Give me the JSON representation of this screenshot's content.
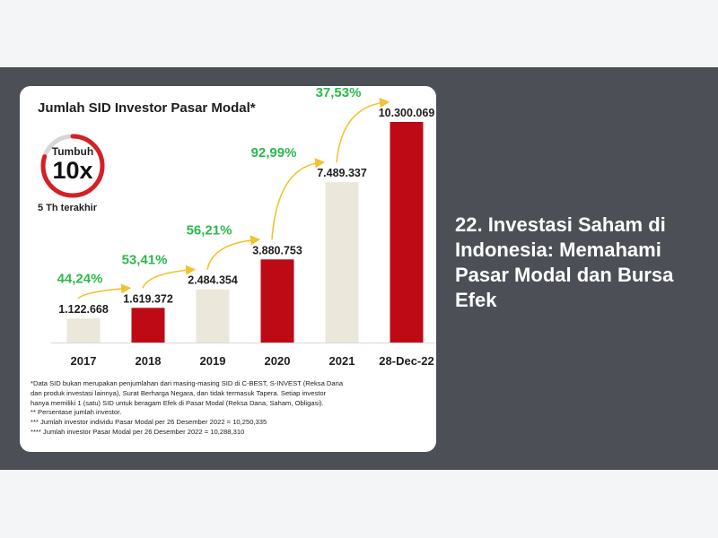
{
  "page": {
    "side_title": "22. Investasi Saham di Indonesia: Memahami Pasar Modal dan Bursa Efek"
  },
  "badge": {
    "top": "Tumbuh",
    "big": "10x",
    "caption": "5 Th terakhir",
    "ring_color": "#d42026",
    "ring_fraction": 0.8
  },
  "colors": {
    "bar_light": "#ebe7da",
    "bar_dark": "#bd0a14",
    "growth_green": "#2db84d",
    "arrow": "#f2c230",
    "axis": "#d9d9d9"
  },
  "chart_data": {
    "type": "bar",
    "title": "Jumlah SID Investor Pasar Modal*",
    "categories": [
      "2017",
      "2018",
      "2019",
      "2020",
      "2021",
      "28-Dec-22"
    ],
    "values": [
      1122668,
      1619372,
      2484354,
      3880753,
      7489337,
      10300069
    ],
    "value_labels": [
      "1.122.668",
      "1.619.372",
      "2.484.354",
      "3.880.753",
      "7.489.337",
      "10.300.069"
    ],
    "bar_styles": [
      "light",
      "dark",
      "light",
      "dark",
      "light",
      "dark"
    ],
    "growth_labels": [
      "44,24%",
      "53,41%",
      "56,21%",
      "92,99%",
      "37,53%"
    ],
    "ylim": [
      0,
      10300069
    ],
    "grid": false,
    "legend": "none"
  },
  "footnotes": [
    "*Data SID bukan merupakan penjumlahan dari masing-masing SID di C-BEST, S-INVEST (Reksa Dana",
    "dan produk investasi lainnya), Surat Berharga Negara, dan tidak termasuk Tapera. Setiap investor",
    "hanya memiliki 1 (satu) SID untuk beragam Efek di Pasar Modal (Reksa Dana, Saham, Obligasi).",
    "** Persentase jumlah investor.",
    "*** Jumlah investor individu Pasar Modal per 26 Desember 2022 = 10,250,335",
    "**** Jumlah investor Pasar Modal per 26 Desember 2022 = 10,288,310"
  ]
}
